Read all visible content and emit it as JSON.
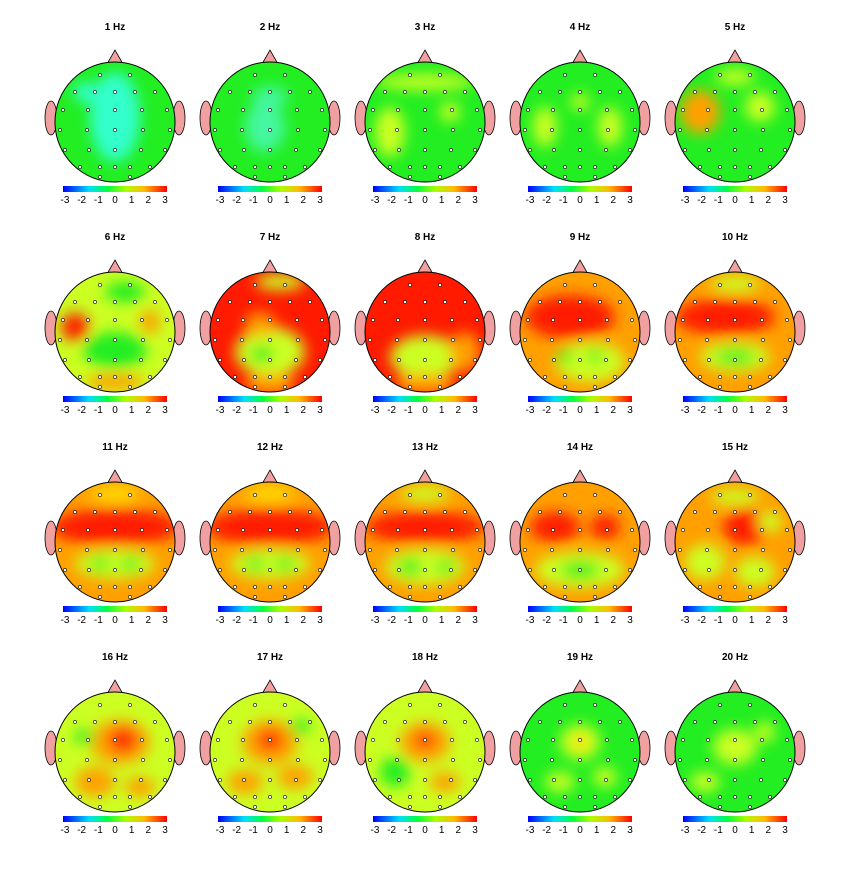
{
  "panels": [
    {
      "title": "1 Hz"
    },
    {
      "title": "2 Hz"
    },
    {
      "title": "3 Hz"
    },
    {
      "title": "4 Hz"
    },
    {
      "title": "5 Hz"
    },
    {
      "title": "6 Hz"
    },
    {
      "title": "7 Hz"
    },
    {
      "title": "8 Hz"
    },
    {
      "title": "9 Hz"
    },
    {
      "title": "10 Hz"
    },
    {
      "title": "11 Hz"
    },
    {
      "title": "12 Hz"
    },
    {
      "title": "13 Hz"
    },
    {
      "title": "14 Hz"
    },
    {
      "title": "15 Hz"
    },
    {
      "title": "16 Hz"
    },
    {
      "title": "17 Hz"
    },
    {
      "title": "18 Hz"
    },
    {
      "title": "19 Hz"
    },
    {
      "title": "20 Hz"
    }
  ],
  "colorbar": {
    "ticks": [
      -3,
      -2,
      -1,
      0,
      1,
      2,
      3
    ]
  }
}
